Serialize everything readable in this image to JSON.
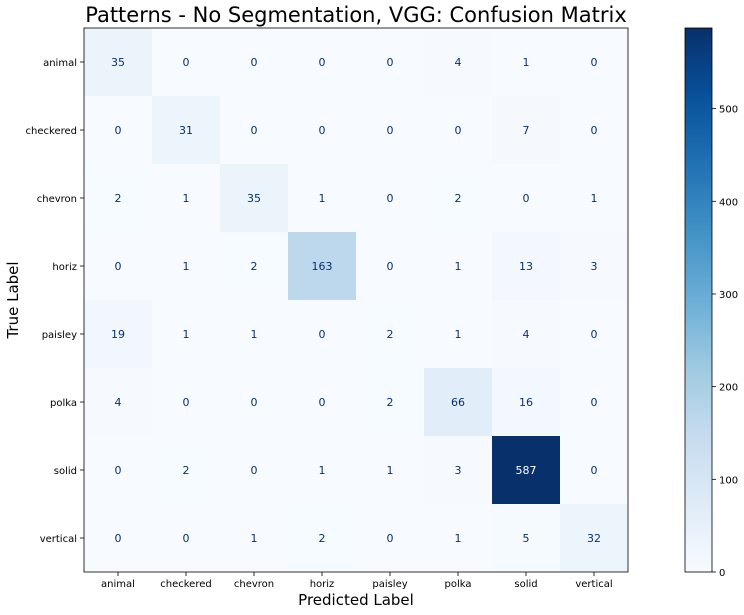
{
  "chart_data": {
    "type": "heatmap",
    "title": "Patterns - No Segmentation, VGG: Confusion Matrix",
    "xlabel": "Predicted Label",
    "ylabel": "True Label",
    "x_categories": [
      "animal",
      "checkered",
      "chevron",
      "horiz",
      "paisley",
      "polka",
      "solid",
      "vertical"
    ],
    "y_categories": [
      "animal",
      "checkered",
      "chevron",
      "horiz",
      "paisley",
      "polka",
      "solid",
      "vertical"
    ],
    "values": [
      [
        35,
        0,
        0,
        0,
        0,
        4,
        1,
        0
      ],
      [
        0,
        31,
        0,
        0,
        0,
        0,
        7,
        0
      ],
      [
        2,
        1,
        35,
        1,
        0,
        2,
        0,
        1
      ],
      [
        0,
        1,
        2,
        163,
        0,
        1,
        13,
        3
      ],
      [
        19,
        1,
        1,
        0,
        2,
        1,
        4,
        0
      ],
      [
        4,
        0,
        0,
        0,
        2,
        66,
        16,
        0
      ],
      [
        0,
        2,
        0,
        1,
        1,
        3,
        587,
        0
      ],
      [
        0,
        0,
        1,
        2,
        0,
        1,
        5,
        32
      ]
    ],
    "colorbar": {
      "colormap": "Blues",
      "range": [
        0,
        587
      ],
      "ticks": [
        0,
        100,
        200,
        300,
        400,
        500
      ]
    }
  }
}
